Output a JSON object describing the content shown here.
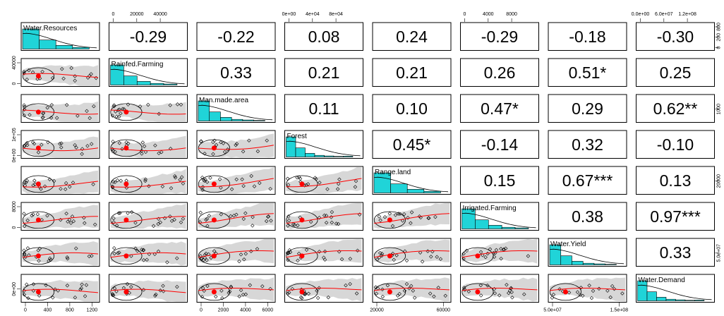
{
  "chart_data": {
    "type": "scatter",
    "variables": [
      "Water.Resources",
      "Rainfed.Farming",
      "Man.made.area",
      "Forest",
      "Range.land",
      "Irrigated.Farming",
      "Water.Yield",
      "Water.Demand"
    ],
    "correlation_matrix_upper": [
      [
        "",
        "-0.29",
        "-0.22",
        "0.08",
        "0.24",
        "-0.29",
        "-0.18",
        "-0.30"
      ],
      [
        "",
        "",
        "0.33",
        "0.21",
        "0.21",
        "0.26",
        "0.51*",
        "0.25"
      ],
      [
        "",
        "",
        "",
        "0.11",
        "0.10",
        "0.47*",
        "0.29",
        "0.62**"
      ],
      [
        "",
        "",
        "",
        "",
        "0.45*",
        "-0.14",
        "0.32",
        "-0.10"
      ],
      [
        "",
        "",
        "",
        "",
        "",
        "0.15",
        "0.67***",
        "0.13"
      ],
      [
        "",
        "",
        "",
        "",
        "",
        "",
        "0.38",
        "0.97***"
      ],
      [
        "",
        "",
        "",
        "",
        "",
        "",
        "",
        "0.33"
      ],
      [
        "",
        "",
        "",
        "",
        "",
        "",
        "",
        ""
      ]
    ],
    "axis_ticks": {
      "top": [
        {
          "col": 1,
          "labels": [
            "0",
            "20000",
            "40000"
          ]
        },
        {
          "col": 3,
          "labels": [
            "0e+00",
            "4e+04",
            "8e+04"
          ]
        },
        {
          "col": 5,
          "labels": [
            "0",
            "4000",
            "8000"
          ]
        },
        {
          "col": 7,
          "labels": [
            "0.0e+00",
            "6.0e+07",
            "1.2e+08"
          ]
        }
      ],
      "bottom": [
        {
          "col": 0,
          "labels": [
            "0",
            "400",
            "800",
            "1200"
          ]
        },
        {
          "col": 2,
          "labels": [
            "0",
            "2000",
            "4000",
            "6000"
          ]
        },
        {
          "col": 4,
          "labels": [
            "20000",
            "60000"
          ]
        },
        {
          "col": 6,
          "labels": [
            "5.0e+07",
            "1.5e+08"
          ]
        }
      ],
      "left": [
        {
          "row": 1,
          "labels": [
            "0",
            "40000"
          ]
        },
        {
          "row": 3,
          "labels": [
            "0e+00",
            "1e+05"
          ]
        },
        {
          "row": 5,
          "labels": [
            "0",
            "8000"
          ]
        },
        {
          "row": 7,
          "labels": [
            "0e+00"
          ]
        }
      ],
      "right": [
        {
          "row": 0,
          "labels": [
            "0",
            "200",
            "800"
          ]
        },
        {
          "row": 2,
          "labels": [
            "1000"
          ]
        },
        {
          "row": 4,
          "labels": [
            "20000"
          ]
        },
        {
          "row": 6,
          "labels": [
            "5.0e+07"
          ]
        }
      ]
    },
    "histogram_color": "#20d4d8",
    "point_color": "#000000",
    "smoother_color": "#ff0000",
    "band_color": "#d3d3d3"
  }
}
